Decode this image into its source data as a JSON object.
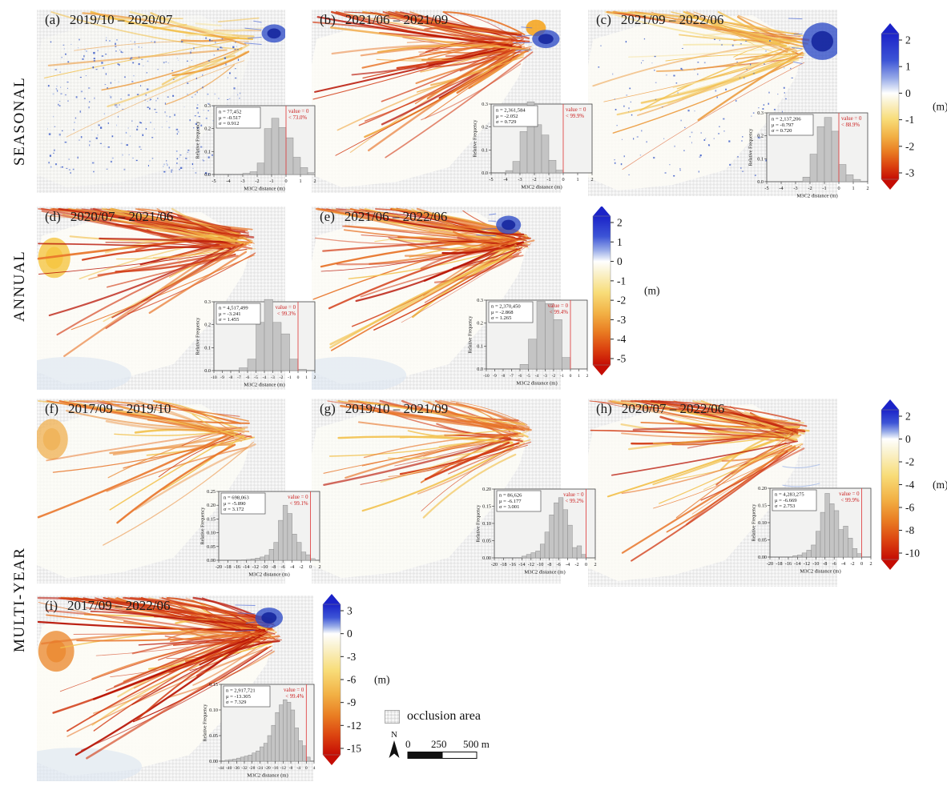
{
  "figure": {
    "rows": [
      {
        "id": "seasonal",
        "label": "SEASONAL"
      },
      {
        "id": "annual",
        "label": "ANNUAL"
      },
      {
        "id": "multi_year",
        "label": "MULTI-YEAR"
      }
    ],
    "legend": {
      "occlusion": "occlusion area",
      "north": "N",
      "scale_labels": [
        "0",
        "250",
        "500 m"
      ]
    }
  },
  "colorbars": [
    {
      "id": "seasonal",
      "ticks": [
        "2",
        "1",
        "0",
        "-1",
        "-2",
        "-3"
      ],
      "unit": "(m)",
      "vmax": 2,
      "vmin": -3
    },
    {
      "id": "annual",
      "ticks": [
        "2",
        "1",
        "0",
        "-1",
        "-2",
        "-3",
        "-4",
        "-5"
      ],
      "unit": "(m)",
      "vmax": 2,
      "vmin": -5
    },
    {
      "id": "multi_year",
      "ticks": [
        "2",
        "0",
        "-2",
        "-4",
        "-6",
        "-8",
        "-10"
      ],
      "unit": "(m)",
      "vmax": 2,
      "vmin": -10
    },
    {
      "id": "full_period",
      "ticks": [
        "3",
        "0",
        "-3",
        "-6",
        "-9",
        "-12",
        "-15"
      ],
      "unit": "(m)",
      "vmax": 3,
      "vmin": -15
    }
  ],
  "chart_data": [
    {
      "type": "histogram",
      "id": "a",
      "panel_label": "(a)",
      "period": "2019/10 – 2020/07",
      "group": "SEASONAL",
      "colorbar": "seasonal",
      "stats_lines": [
        "n = 77,452",
        "μ = -0.517",
        "σ = 0.912"
      ],
      "annotation_lines": [
        "value = 0",
        "< 73.0%"
      ],
      "xlabel": "M3C2 distance (m)",
      "ylabel": "Relative Frequency",
      "xlim": [
        -5,
        2
      ],
      "ylim": [
        0,
        0.3
      ],
      "xticks": [
        "-5",
        "-4",
        "-3",
        "-2",
        "-1",
        "0",
        "1",
        "2"
      ],
      "yticks": [
        "0.0",
        "0.1",
        "0.2",
        "0.3"
      ],
      "bin_start": -3.0,
      "bin_width": 0.5,
      "heights": [
        0.005,
        0.012,
        0.05,
        0.2,
        0.245,
        0.205,
        0.16,
        0.075,
        0.03,
        0.008
      ],
      "map_style": {
        "fan_opacity": 0.4,
        "streaks": {
          "count": 16,
          "palette": [
            [
              "#f2c14e",
              0.45
            ],
            [
              "#ec9a3c",
              0.35
            ],
            [
              "#f6e3a1",
              0.2
            ]
          ]
        },
        "speckles": [
          {
            "count": 240,
            "color": "#3e5ec8",
            "size": 1.6
          },
          {
            "count": 90,
            "color": "#8aa2e4",
            "size": 1.3
          }
        ],
        "blue_patch": {
          "cx": 0.955,
          "cy": 0.13,
          "rx": 0.05,
          "ry": 0.05
        },
        "top_band": true
      }
    },
    {
      "type": "histogram",
      "id": "b",
      "panel_label": "(b)",
      "period": "2021/06 – 2021/09",
      "group": "SEASONAL",
      "colorbar": "seasonal",
      "stats_lines": [
        "n = 2,361,584",
        "μ = -2.052",
        "σ = 0.729"
      ],
      "annotation_lines": [
        "value = 0",
        "< 99.9%"
      ],
      "xlabel": "M3C2 distance (m)",
      "ylabel": "Relative Frequency",
      "xlim": [
        -5,
        2
      ],
      "ylim": [
        0,
        0.3
      ],
      "xticks": [
        "-5",
        "-4",
        "-3",
        "-2",
        "-1",
        "0",
        "1",
        "2"
      ],
      "yticks": [
        "0.0",
        "0.1",
        "0.2",
        "0.3"
      ],
      "bin_start": -4.0,
      "bin_width": 0.5,
      "heights": [
        0.01,
        0.05,
        0.18,
        0.31,
        0.21,
        0.165,
        0.055,
        0.012
      ],
      "map_style": {
        "fan_opacity": 0.9,
        "streaks": {
          "count": 78,
          "palette": [
            [
              "#d23b15",
              0.38
            ],
            [
              "#e8752a",
              0.3
            ],
            [
              "#f0a844",
              0.17
            ],
            [
              "#b81405",
              0.15
            ]
          ]
        },
        "blue_patch": {
          "cx": 0.94,
          "cy": 0.16,
          "rx": 0.055,
          "ry": 0.05
        },
        "apex_blob": {
          "cx": 0.9,
          "cy": 0.1,
          "color": "#f5a623"
        }
      }
    },
    {
      "type": "histogram",
      "id": "c",
      "panel_label": "(c)",
      "period": "2021/09 – 2022/06",
      "group": "SEASONAL",
      "colorbar": "seasonal",
      "stats_lines": [
        "n = 2,137,206",
        "μ = -0.797",
        "σ = 0.720"
      ],
      "annotation_lines": [
        "value = 0",
        "< 88.9%"
      ],
      "xlabel": "M3C2 distance (m)",
      "ylabel": "Relative Frequency",
      "xlim": [
        -5,
        2
      ],
      "ylim": [
        0,
        0.3
      ],
      "xticks": [
        "-5",
        "-4",
        "-3",
        "-2",
        "-1",
        "0",
        "1",
        "2"
      ],
      "yticks": [
        "0.0",
        "0.1",
        "0.2",
        "0.3"
      ],
      "bin_start": -2.5,
      "bin_width": 0.5,
      "heights": [
        0.02,
        0.12,
        0.24,
        0.28,
        0.22,
        0.075,
        0.03,
        0.01
      ],
      "map_style": {
        "fan_opacity": 0.85,
        "streaks": {
          "count": 46,
          "palette": [
            [
              "#f2c14e",
              0.4
            ],
            [
              "#ec9a3c",
              0.3
            ],
            [
              "#f6e3a1",
              0.2
            ],
            [
              "#d9541f",
              0.1
            ]
          ]
        },
        "speckles": [
          {
            "count": 130,
            "color": "#3e5ec8",
            "size": 1.4
          }
        ],
        "blue_patch": {
          "cx": 0.94,
          "cy": 0.17,
          "rx": 0.08,
          "ry": 0.1
        }
      }
    },
    {
      "type": "histogram",
      "id": "d",
      "panel_label": "(d)",
      "period": "2020/07 – 2021/06",
      "group": "ANNUAL",
      "colorbar": "annual",
      "stats_lines": [
        "n = 4,517,499",
        "μ = -3.241",
        "σ = 1.455"
      ],
      "annotation_lines": [
        "value = 0",
        "< 99.3%"
      ],
      "xlabel": "M3C2 distance (m)",
      "ylabel": "Relative Frequency",
      "xlim": [
        -10,
        2
      ],
      "ylim": [
        0,
        0.3
      ],
      "xticks": [
        "-10",
        "-9",
        "-8",
        "-7",
        "-6",
        "-5",
        "-4",
        "-3",
        "-2",
        "-1",
        "0",
        "1",
        "2"
      ],
      "yticks": [
        "0.0",
        "0.1",
        "0.2",
        "0.3"
      ],
      "bin_start": -7,
      "bin_width": 1,
      "heights": [
        0.012,
        0.05,
        0.21,
        0.31,
        0.21,
        0.16,
        0.05,
        0.006
      ],
      "map_style": {
        "fan_opacity": 0.92,
        "ice": true,
        "streaks": {
          "count": 82,
          "palette": [
            [
              "#e8752a",
              0.3
            ],
            [
              "#d23b15",
              0.28
            ],
            [
              "#f2c14e",
              0.27
            ],
            [
              "#b81405",
              0.15
            ]
          ]
        },
        "left_blob": {
          "cx": 0.07,
          "cy": 0.28,
          "color": "#f5c542"
        }
      }
    },
    {
      "type": "histogram",
      "id": "e",
      "panel_label": "(e)",
      "period": "2021/06 – 2022/06",
      "group": "ANNUAL",
      "colorbar": "annual",
      "stats_lines": [
        "n = 2,370,450",
        "μ = -2.868",
        "σ = 1.265"
      ],
      "annotation_lines": [
        "value = 0",
        "< 99.4%"
      ],
      "xlabel": "M3C2 distance (m)",
      "ylabel": "Relative Frequency",
      "xlim": [
        -10,
        2
      ],
      "ylim": [
        0,
        0.3
      ],
      "xticks": [
        "-10",
        "-9",
        "-8",
        "-7",
        "-6",
        "-5",
        "-4",
        "-3",
        "-2",
        "-1",
        "0",
        "1",
        "2"
      ],
      "yticks": [
        "0.0",
        "0.1",
        "0.2",
        "0.3"
      ],
      "bin_start": -6,
      "bin_width": 1,
      "heights": [
        0.02,
        0.13,
        0.295,
        0.285,
        0.215,
        0.05
      ],
      "map_style": {
        "fan_opacity": 0.92,
        "ice": true,
        "streaks": {
          "count": 80,
          "palette": [
            [
              "#e8752a",
              0.3
            ],
            [
              "#d23b15",
              0.28
            ],
            [
              "#f2c14e",
              0.27
            ],
            [
              "#b81405",
              0.15
            ]
          ]
        },
        "blue_patch": {
          "cx": 0.79,
          "cy": 0.1,
          "rx": 0.05,
          "ry": 0.05
        }
      }
    },
    {
      "type": "histogram",
      "id": "f",
      "panel_label": "(f)",
      "period": "2017/09 – 2019/10",
      "group": "MULTI-YEAR",
      "colorbar": "multi_year",
      "stats_lines": [
        "n = 698,063",
        "μ = -5.890",
        "σ = 3.172"
      ],
      "annotation_lines": [
        "value = 0",
        "< 99.1%"
      ],
      "xlabel": "M3C2 distance (m)",
      "ylabel": "Relative Frequency",
      "xlim": [
        -20,
        2
      ],
      "ylim": [
        0,
        0.25
      ],
      "xticks": [
        "-20",
        "-18",
        "-16",
        "-14",
        "-12",
        "-10",
        "-8",
        "-6",
        "-4",
        "-2",
        "0",
        "2"
      ],
      "yticks": [
        "0.00",
        "0.05",
        "0.10",
        "0.15",
        "0.20",
        "0.25"
      ],
      "bin_start": -15,
      "bin_width": 1,
      "heights": [
        0.002,
        0.003,
        0.005,
        0.008,
        0.012,
        0.018,
        0.04,
        0.065,
        0.145,
        0.2,
        0.17,
        0.095,
        0.065,
        0.03,
        0.02,
        0.006
      ],
      "map_style": {
        "fan_opacity": 0.8,
        "streaks": {
          "count": 40,
          "palette": [
            [
              "#ec964a",
              0.4
            ],
            [
              "#e8752a",
              0.25
            ],
            [
              "#f2c14e",
              0.25
            ],
            [
              "#d23b15",
              0.1
            ]
          ]
        },
        "left_blob": {
          "cx": 0.06,
          "cy": 0.22,
          "color": "#f0b45a"
        }
      }
    },
    {
      "type": "histogram",
      "id": "g",
      "panel_label": "(g)",
      "period": "2019/10 – 2021/09",
      "group": "MULTI-YEAR",
      "colorbar": "multi_year",
      "stats_lines": [
        "n = 86,626",
        "μ = -6.177",
        "σ = 3.001"
      ],
      "annotation_lines": [
        "value = 0",
        "< 99.2%"
      ],
      "xlabel": "M3C2 distance (m)",
      "ylabel": "Relative Frequency",
      "xlim": [
        -20,
        2
      ],
      "ylim": [
        0,
        0.2
      ],
      "xticks": [
        "-20",
        "-18",
        "-16",
        "-14",
        "-12",
        "-10",
        "-8",
        "-6",
        "-4",
        "-2",
        "0",
        "2"
      ],
      "yticks": [
        "0.00",
        "0.05",
        "0.10",
        "0.15",
        "0.20"
      ],
      "bin_start": -14,
      "bin_width": 1,
      "heights": [
        0.005,
        0.01,
        0.015,
        0.02,
        0.04,
        0.075,
        0.125,
        0.16,
        0.175,
        0.14,
        0.095,
        0.03,
        0.035,
        0.01
      ],
      "map_style": {
        "fan_opacity": 0.8,
        "streaks": {
          "count": 50,
          "palette": [
            [
              "#e8752a",
              0.35
            ],
            [
              "#d23b15",
              0.3
            ],
            [
              "#f2c14e",
              0.25
            ],
            [
              "#b81405",
              0.1
            ]
          ]
        }
      }
    },
    {
      "type": "histogram",
      "id": "h",
      "panel_label": "(h)",
      "period": "2020/07 – 2022/06",
      "group": "MULTI-YEAR",
      "colorbar": "multi_year",
      "stats_lines": [
        "n = 4,283,275",
        "μ = -6.669",
        "σ = 2.753"
      ],
      "annotation_lines": [
        "value = 0",
        "< 99.9%"
      ],
      "xlabel": "M3C2 distance (m)",
      "ylabel": "Relative Frequency",
      "xlim": [
        -20,
        2
      ],
      "ylim": [
        0,
        0.2
      ],
      "xticks": [
        "-20",
        "-18",
        "-16",
        "-14",
        "-12",
        "-10",
        "-8",
        "-6",
        "-4",
        "-2",
        "0",
        "2"
      ],
      "yticks": [
        "0.00",
        "0.05",
        "0.10",
        "0.15",
        "0.20"
      ],
      "bin_start": -15,
      "bin_width": 1,
      "heights": [
        0.004,
        0.006,
        0.012,
        0.02,
        0.035,
        0.075,
        0.13,
        0.185,
        0.155,
        0.135,
        0.08,
        0.09,
        0.055,
        0.025,
        0.01
      ],
      "map_style": {
        "fan_opacity": 0.85,
        "streaks": {
          "count": 64,
          "palette": [
            [
              "#e8752a",
              0.33
            ],
            [
              "#d23b15",
              0.32
            ],
            [
              "#f2c14e",
              0.2
            ],
            [
              "#b81405",
              0.15
            ]
          ]
        },
        "blue_wisp": true
      }
    },
    {
      "type": "histogram",
      "id": "i",
      "panel_label": "(i)",
      "period": "2017/09 – 2022/06",
      "group": "MULTI-YEAR",
      "colorbar": "full_period",
      "stats_lines": [
        "n = 2,917,721",
        "μ = -13.305",
        "σ = 7.329"
      ],
      "annotation_lines": [
        "value = 0",
        "< 99.4%"
      ],
      "xlabel": "M3C2 distance (m)",
      "ylabel": "Relative Frequency",
      "xlim": [
        -44,
        4
      ],
      "ylim": [
        0,
        0.15
      ],
      "xticks": [
        "-44",
        "-40",
        "-36",
        "-32",
        "-28",
        "-24",
        "-20",
        "-16",
        "-12",
        "-8",
        "-4",
        "0",
        "4"
      ],
      "yticks": [
        "0.00",
        "0.05",
        "0.10",
        "0.15"
      ],
      "bin_start": -42,
      "bin_width": 2,
      "heights": [
        0.002,
        0.003,
        0.004,
        0.006,
        0.008,
        0.01,
        0.012,
        0.016,
        0.02,
        0.028,
        0.035,
        0.05,
        0.07,
        0.095,
        0.11,
        0.12,
        0.115,
        0.1,
        0.065,
        0.04,
        0.03,
        0.008
      ],
      "map_style": {
        "fan_opacity": 0.95,
        "ice": true,
        "streaks": {
          "count": 95,
          "palette": [
            [
              "#d23b15",
              0.36
            ],
            [
              "#e8752a",
              0.28
            ],
            [
              "#b81405",
              0.18
            ],
            [
              "#f2c14e",
              0.18
            ]
          ]
        },
        "left_blob": {
          "cx": 0.07,
          "cy": 0.3,
          "color": "#eb8c34"
        },
        "blue_patch": {
          "cx": 0.84,
          "cy": 0.12,
          "rx": 0.05,
          "ry": 0.055
        }
      }
    }
  ],
  "colors": {
    "histogram_bar": "#c4c4c4",
    "histogram_bar_edge": "#8e8e8e",
    "histogram_bg": "#f2f2f1",
    "zero_line": "#e04848",
    "annotation_red": "#cc2222",
    "stats_border": "#555555",
    "colorbar_blue_tip": "#1b23c8",
    "colorbar_red_tip": "#c50d04",
    "occlusion_checker": "#e7e7e7",
    "occlusion_bg": "#f8f8f8"
  }
}
